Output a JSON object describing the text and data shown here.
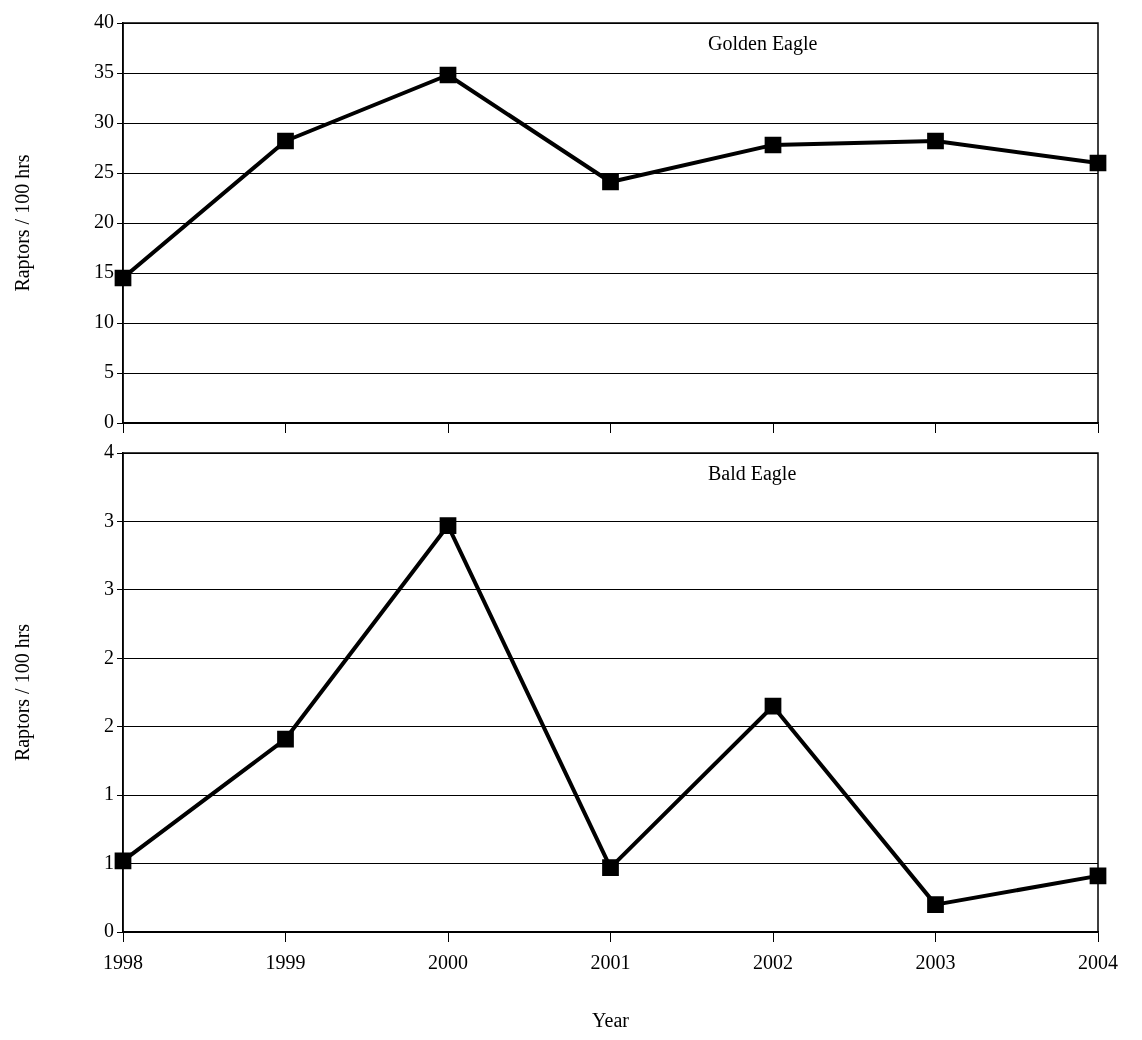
{
  "chart_data": [
    {
      "type": "line",
      "ylabel": "Raptors / 100 hrs",
      "categories": [
        "1998",
        "1999",
        "2000",
        "2001",
        "2002",
        "2003",
        "2004"
      ],
      "tick_labels": "y",
      "series": [
        {
          "name": "Golden Eagle",
          "color": "#000000",
          "values": [
            14.5,
            28.2,
            34.8,
            24.1,
            27.8,
            28.2,
            26.0
          ]
        }
      ],
      "ylim": [
        0,
        40
      ],
      "yticks": [
        0,
        5,
        10,
        15,
        20,
        25,
        30,
        35,
        40
      ],
      "grid": "y",
      "marker": "square",
      "line_style": "solid",
      "legend": false
    },
    {
      "type": "line",
      "xlabel": "Year",
      "ylabel": "Raptors / 100 hrs",
      "categories": [
        "1998",
        "1999",
        "2000",
        "2001",
        "2002",
        "2003",
        "2004"
      ],
      "series": [
        {
          "name": "Bald Eagle",
          "color": "#000000",
          "values": [
            0.52,
            1.41,
            2.97,
            0.47,
            1.65,
            0.2,
            0.41
          ]
        }
      ],
      "ylim": [
        0,
        3.5
      ],
      "yticks": [
        0,
        {
          "value": 0.5,
          "label": "1"
        },
        1,
        {
          "value": 1.5,
          "label": "2"
        },
        2,
        {
          "value": 2.5,
          "label": "3"
        },
        3,
        {
          "value": 3.5,
          "label": "4"
        }
      ],
      "grid": "y",
      "marker": "square",
      "line_style": "solid",
      "legend": false
    }
  ]
}
